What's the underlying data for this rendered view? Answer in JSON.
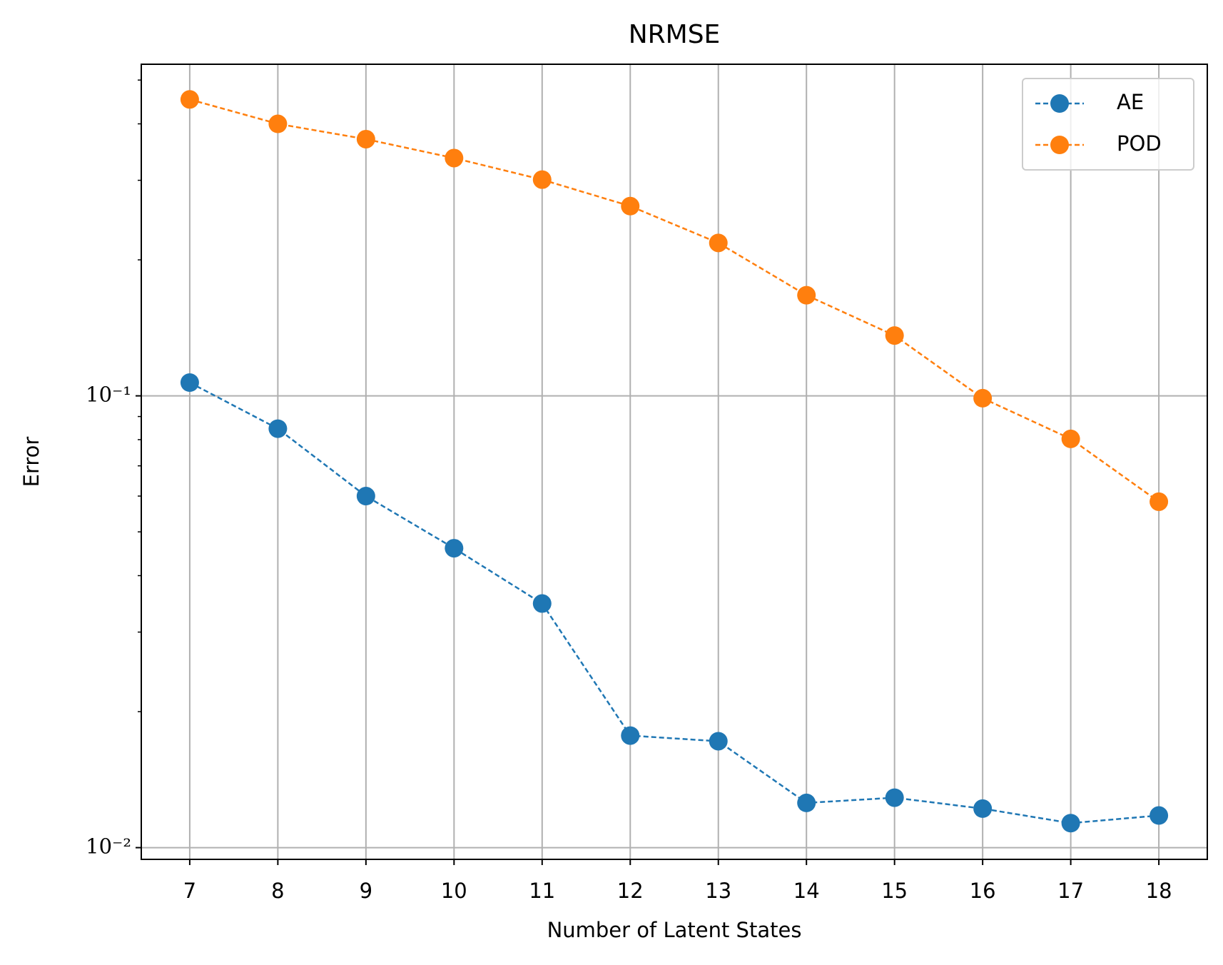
{
  "chart_data": {
    "type": "line",
    "title": "NRMSE",
    "x_label": "Number of Latent States",
    "y_label": "Error",
    "x": [
      7,
      8,
      9,
      10,
      11,
      12,
      13,
      14,
      15,
      16,
      17,
      18
    ],
    "series": [
      {
        "name": "AE",
        "color": "#1f77b4",
        "values": [
          0.107,
          0.0846,
          0.06,
          0.046,
          0.0347,
          0.0177,
          0.0172,
          0.01256,
          0.0129,
          0.0122,
          0.01133,
          0.01178
        ]
      },
      {
        "name": "POD",
        "color": "#ff7f0e",
        "values": [
          0.453,
          0.4,
          0.37,
          0.336,
          0.301,
          0.263,
          0.218,
          0.167,
          0.136,
          0.0988,
          0.0803,
          0.0583
        ]
      }
    ],
    "xlim": [
      6.45,
      18.55
    ],
    "xticks": [
      7,
      8,
      9,
      10,
      11,
      12,
      13,
      14,
      15,
      16,
      17,
      18
    ],
    "ylim": [
      0.00942,
      0.542
    ],
    "y_scale": "log",
    "yticks": [
      {
        "value": 0.01,
        "label": "10⁻²"
      },
      {
        "value": 0.1,
        "label": "10⁻¹"
      }
    ],
    "y_minor_ticks": [
      0.02,
      0.03,
      0.04,
      0.05,
      0.06,
      0.07,
      0.08,
      0.09,
      0.2,
      0.3,
      0.4,
      0.5
    ],
    "grid": true,
    "legend": "upper right",
    "line_style": "dashed",
    "marker": "circle"
  }
}
